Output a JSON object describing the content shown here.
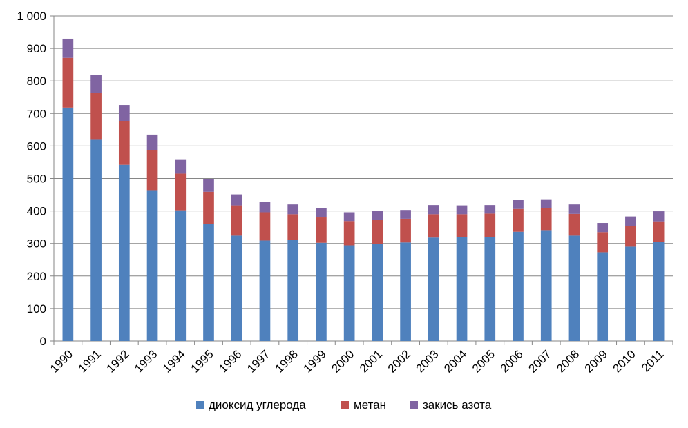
{
  "chart_data": {
    "type": "bar",
    "stacked": true,
    "categories": [
      "1990",
      "1991",
      "1992",
      "1993",
      "1994",
      "1995",
      "1996",
      "1997",
      "1998",
      "1999",
      "2000",
      "2001",
      "2002",
      "2003",
      "2004",
      "2005",
      "2006",
      "2007",
      "2008",
      "2009",
      "2010",
      "2011"
    ],
    "series": [
      {
        "name": "диоксид углерода",
        "color": "#4F81BD",
        "values": [
          718,
          619,
          542,
          464,
          402,
          360,
          324,
          309,
          310,
          302,
          294,
          299,
          303,
          318,
          320,
          320,
          336,
          341,
          324,
          273,
          290,
          305
        ]
      },
      {
        "name": "метан",
        "color": "#C0504D",
        "values": [
          153,
          144,
          134,
          124,
          113,
          99,
          93,
          87,
          80,
          78,
          75,
          74,
          73,
          72,
          70,
          72,
          70,
          68,
          67,
          62,
          63,
          63
        ]
      },
      {
        "name": "закись азота",
        "color": "#8064A2",
        "values": [
          59,
          55,
          50,
          47,
          42,
          38,
          34,
          32,
          30,
          29,
          27,
          27,
          27,
          28,
          27,
          26,
          28,
          27,
          29,
          28,
          30,
          31
        ]
      }
    ],
    "yticks": [
      "0",
      "100",
      "200",
      "300",
      "400",
      "500",
      "600",
      "700",
      "800",
      "900",
      "1 000"
    ],
    "ylim": [
      0,
      1000
    ],
    "grid": true,
    "legend": "bottom"
  }
}
